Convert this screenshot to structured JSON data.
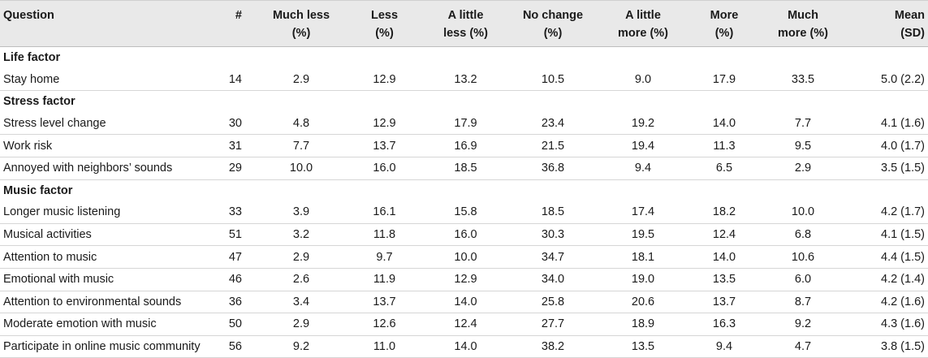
{
  "headers": [
    "Question",
    "#",
    "Much less (%)",
    "Less (%)",
    "A little less (%)",
    "No change (%)",
    "A little more (%)",
    "More (%)",
    "Much more (%)",
    "Mean (SD)"
  ],
  "header_lines": [
    [
      "Question",
      ""
    ],
    [
      "#",
      ""
    ],
    [
      "Much less",
      "(%)"
    ],
    [
      "Less",
      "(%)"
    ],
    [
      "A little",
      "less (%)"
    ],
    [
      "No change",
      "(%)"
    ],
    [
      "A little",
      "more (%)"
    ],
    [
      "More",
      "(%)"
    ],
    [
      "Much",
      "more (%)"
    ],
    [
      "Mean",
      "(SD)"
    ]
  ],
  "sections": [
    {
      "title": "Life factor",
      "rows": [
        [
          "Stay home",
          "14",
          "2.9",
          "12.9",
          "13.2",
          "10.5",
          "9.0",
          "17.9",
          "33.5",
          "5.0 (2.2)"
        ]
      ]
    },
    {
      "title": "Stress factor",
      "rows": [
        [
          "Stress level change",
          "30",
          "4.8",
          "12.9",
          "17.9",
          "23.4",
          "19.2",
          "14.0",
          "7.7",
          "4.1 (1.6)"
        ],
        [
          "Work risk",
          "31",
          "7.7",
          "13.7",
          "16.9",
          "21.5",
          "19.4",
          "11.3",
          "9.5",
          "4.0 (1.7)"
        ],
        [
          "Annoyed with neighbors’ sounds",
          "29",
          "10.0",
          "16.0",
          "18.5",
          "36.8",
          "9.4",
          "6.5",
          "2.9",
          "3.5 (1.5)"
        ]
      ]
    },
    {
      "title": "Music factor",
      "rows": [
        [
          "Longer music listening",
          "33",
          "3.9",
          "16.1",
          "15.8",
          "18.5",
          "17.4",
          "18.2",
          "10.0",
          "4.2 (1.7)"
        ],
        [
          "Musical activities",
          "51",
          "3.2",
          "11.8",
          "16.0",
          "30.3",
          "19.5",
          "12.4",
          "6.8",
          "4.1 (1.5)"
        ],
        [
          "Attention to music",
          "47",
          "2.9",
          "9.7",
          "10.0",
          "34.7",
          "18.1",
          "14.0",
          "10.6",
          "4.4 (1.5)"
        ],
        [
          "Emotional with music",
          "46",
          "2.6",
          "11.9",
          "12.9",
          "34.0",
          "19.0",
          "13.5",
          "6.0",
          "4.2 (1.4)"
        ],
        [
          "Attention to environmental sounds",
          "36",
          "3.4",
          "13.7",
          "14.0",
          "25.8",
          "20.6",
          "13.7",
          "8.7",
          "4.2 (1.6)"
        ],
        [
          "Moderate emotion with music",
          "50",
          "2.9",
          "12.6",
          "12.4",
          "27.7",
          "18.9",
          "16.3",
          "9.2",
          "4.3 (1.6)"
        ],
        [
          "Participate in online music community",
          "56",
          "9.2",
          "11.0",
          "14.0",
          "38.2",
          "13.5",
          "9.4",
          "4.7",
          "3.8 (1.5)"
        ]
      ]
    }
  ]
}
